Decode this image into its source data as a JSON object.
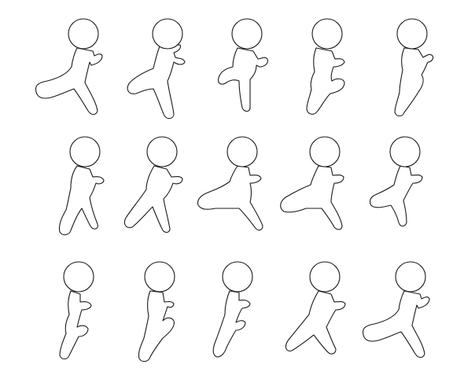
{
  "sprite_sheet": {
    "columns": 5,
    "rows": 3,
    "frames": [
      {
        "row": 1,
        "col": 1,
        "pose": "lunge-lean-left"
      },
      {
        "row": 1,
        "col": 2,
        "pose": "stride-back-knee"
      },
      {
        "row": 1,
        "col": 3,
        "pose": "knee-down-crouch"
      },
      {
        "row": 1,
        "col": 4,
        "pose": "knee-raised"
      },
      {
        "row": 1,
        "col": 5,
        "pose": "knee-raised-forward"
      },
      {
        "row": 2,
        "col": 1,
        "pose": "stride-low"
      },
      {
        "row": 2,
        "col": 2,
        "pose": "wide-stride"
      },
      {
        "row": 2,
        "col": 3,
        "pose": "deep-lunge"
      },
      {
        "row": 2,
        "col": 4,
        "pose": "lunge-kneel"
      },
      {
        "row": 2,
        "col": 5,
        "pose": "kneel-upright"
      },
      {
        "row": 3,
        "col": 1,
        "pose": "upright-tuck"
      },
      {
        "row": 3,
        "col": 2,
        "pose": "knee-up-tall"
      },
      {
        "row": 3,
        "col": 3,
        "pose": "knee-forward-step"
      },
      {
        "row": 3,
        "col": 4,
        "pose": "wide-step"
      },
      {
        "row": 3,
        "col": 5,
        "pose": "lunge-lean-left"
      }
    ]
  }
}
